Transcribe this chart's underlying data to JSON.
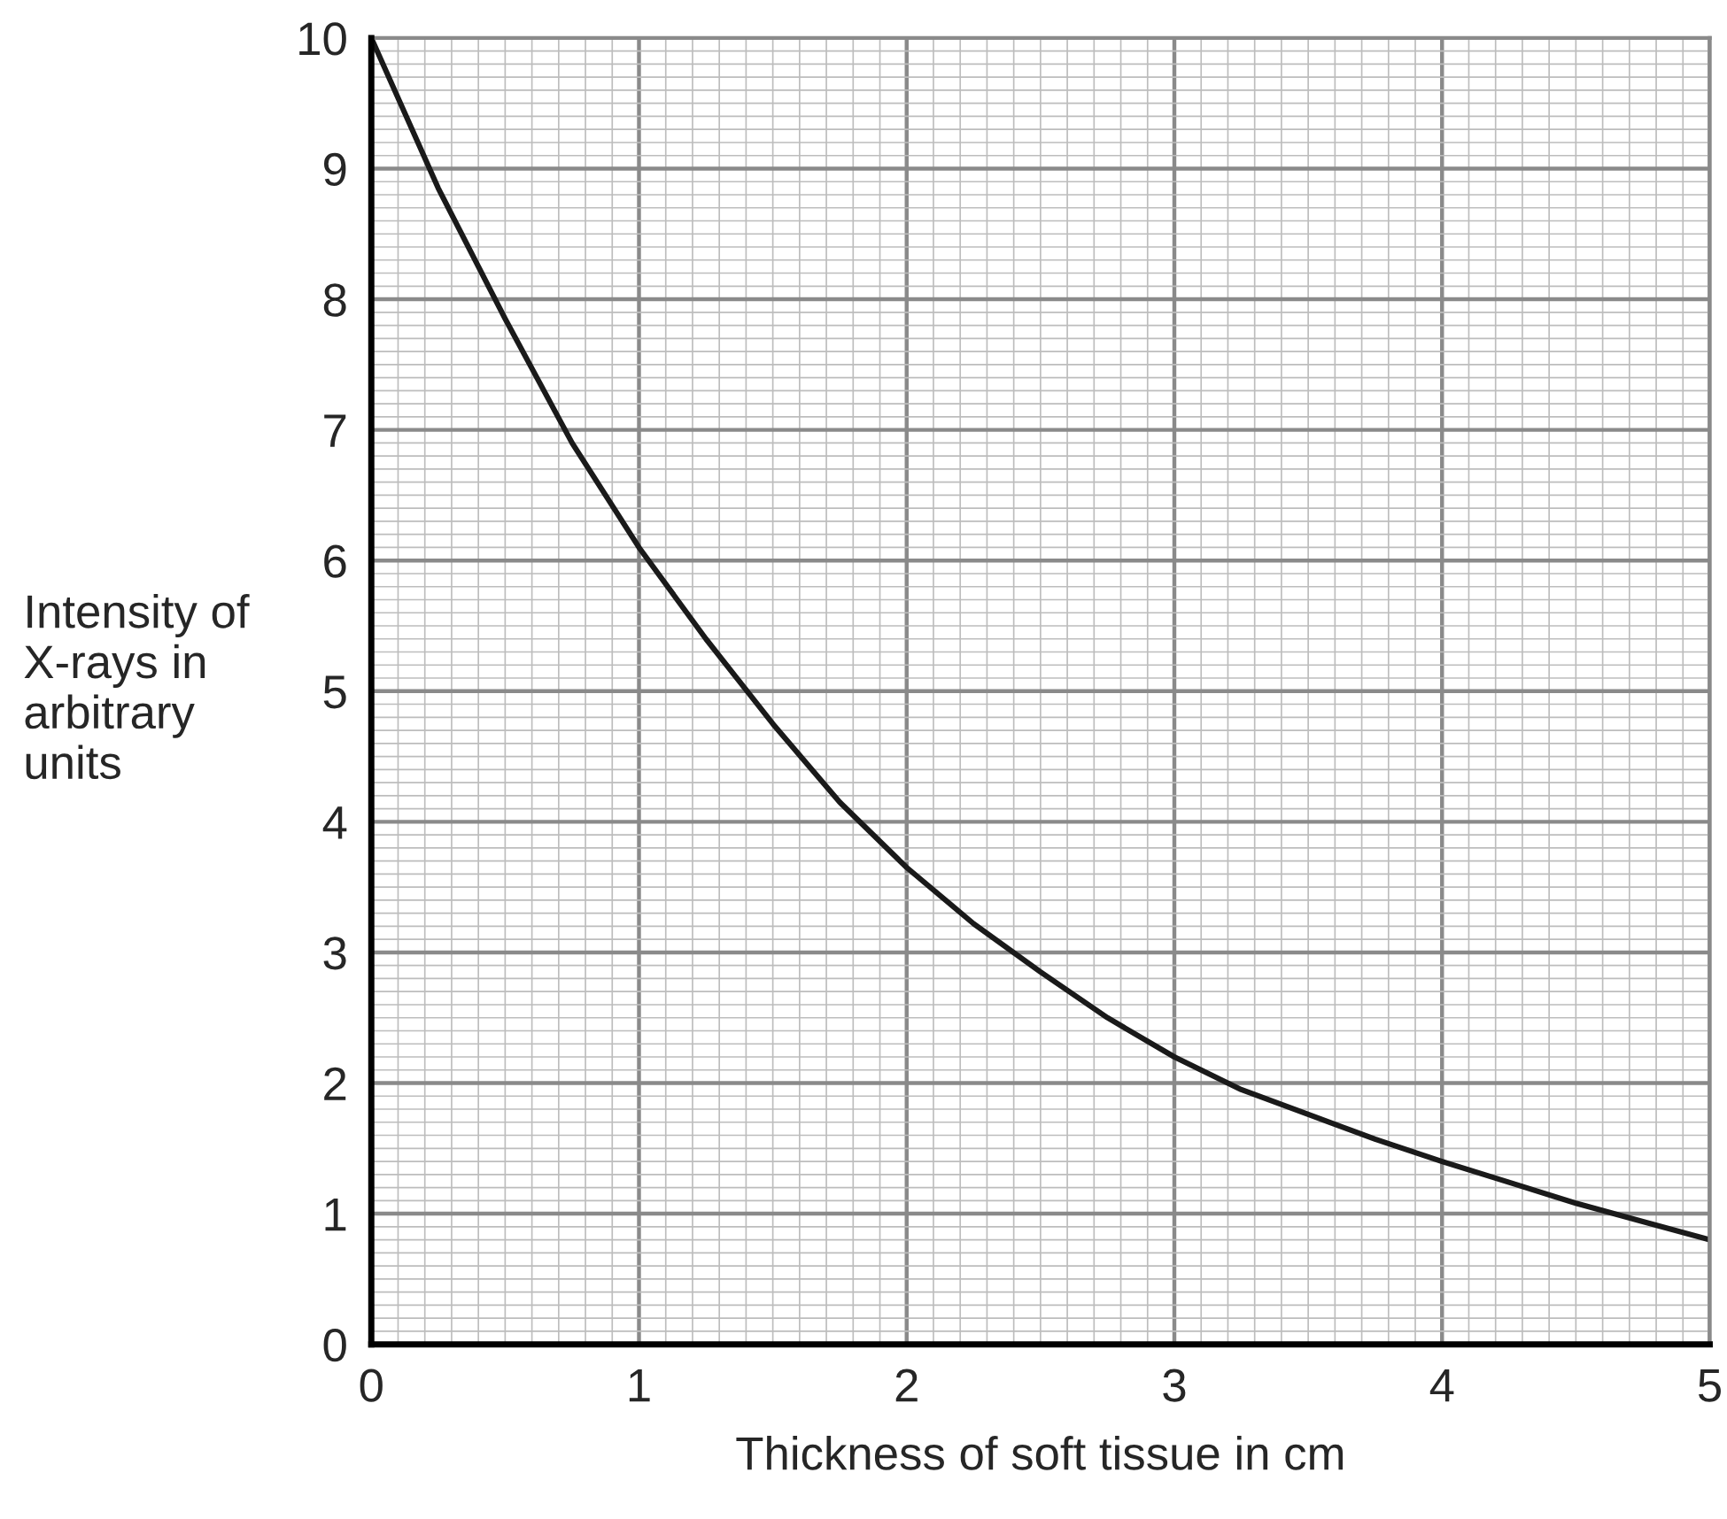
{
  "chart_data": {
    "type": "line",
    "xlabel": "Thickness of soft tissue in cm",
    "ylabel": "Intensity of\nX-rays in\narbitrary\nunits",
    "x": [
      0,
      0.25,
      0.5,
      0.75,
      1,
      1.25,
      1.5,
      1.75,
      2,
      2.25,
      2.5,
      2.75,
      3,
      3.25,
      3.5,
      3.75,
      4,
      4.25,
      4.5,
      4.75,
      5
    ],
    "series": [
      {
        "color": "#1a1a1a",
        "values": [
          10,
          8.85,
          7.85,
          6.9,
          6.1,
          5.4,
          4.75,
          4.15,
          3.65,
          3.22,
          2.85,
          2.5,
          2.2,
          1.95,
          1.76,
          1.57,
          1.4,
          1.24,
          1.08,
          0.94,
          0.8
        ]
      }
    ],
    "xlim": [
      0,
      5
    ],
    "ylim": [
      0,
      10
    ],
    "xticks": [
      0,
      1,
      2,
      3,
      4,
      5
    ],
    "yticks": [
      0,
      1,
      2,
      3,
      4,
      5,
      6,
      7,
      8,
      9,
      10
    ],
    "grid": true,
    "marker": "none",
    "line_style": "solid"
  }
}
